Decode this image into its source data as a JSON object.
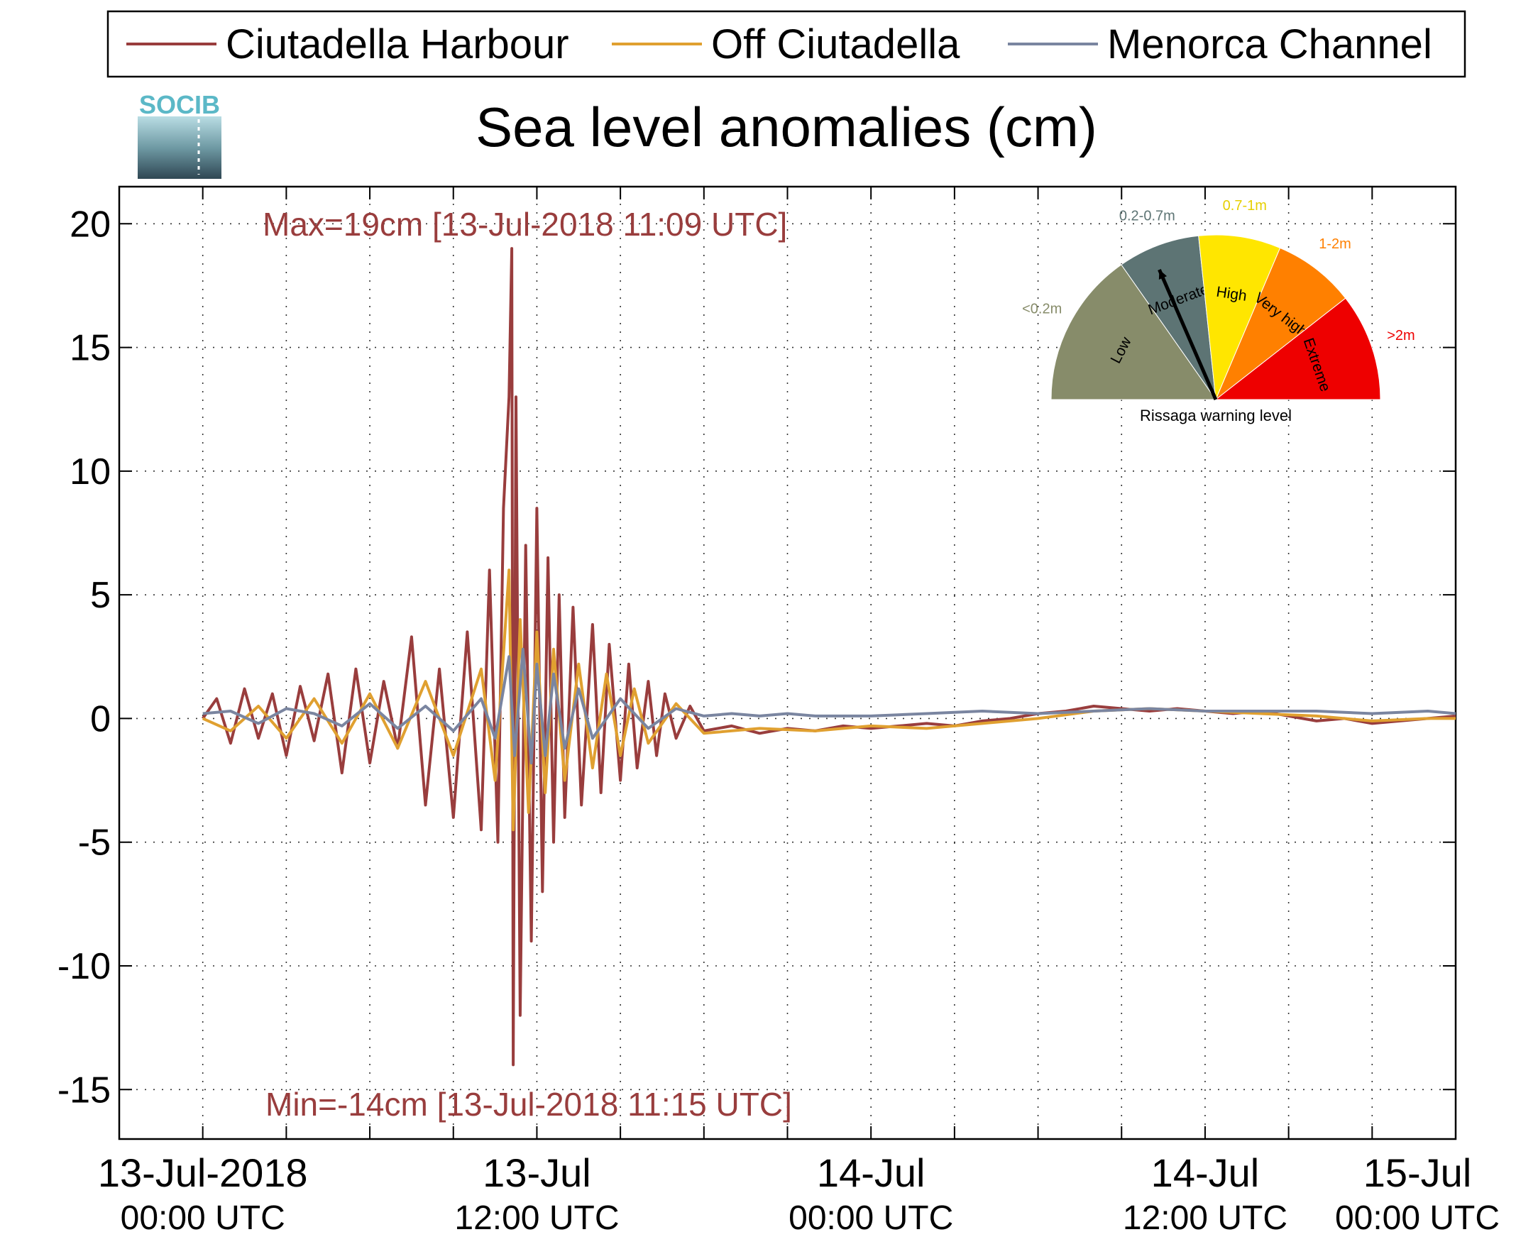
{
  "title": "Sea level anomalies (cm)",
  "logo": {
    "text": "SOCIB"
  },
  "legend": [
    {
      "label": "Ciutadella Harbour",
      "color": "#993d3d"
    },
    {
      "label": "Off Ciutadella",
      "color": "#e0a030"
    },
    {
      "label": "Menorca Channel",
      "color": "#7a85a0"
    }
  ],
  "annotations": {
    "max": "Max=19cm [13-Jul-2018 11:09 UTC]",
    "min": "Min=-14cm [13-Jul-2018 11:15 UTC]",
    "color": "#993d3d"
  },
  "gauge": {
    "title": "Rissaga warning level",
    "needle_level": "Moderate",
    "segments": [
      {
        "name": "Low",
        "range": "<0.2m",
        "color": "#878c6a",
        "range_color": "#878c6a"
      },
      {
        "name": "Moderate",
        "range": "0.2-0.7m",
        "color": "#5d7474",
        "range_color": "#5d7474"
      },
      {
        "name": "High",
        "range": "0.7-1m",
        "color": "#ffe600",
        "range_color": "#e6cf00"
      },
      {
        "name": "Very high",
        "range": "1-2m",
        "color": "#ff8000",
        "range_color": "#ff8000"
      },
      {
        "name": "Extreme",
        "range": ">2m",
        "color": "#ee0000",
        "range_color": "#ee0000"
      }
    ]
  },
  "chart_data": {
    "type": "line",
    "title": "Sea level anomalies (cm)",
    "ylabel": "",
    "xlabel": "",
    "ylim": [
      -17,
      21.5
    ],
    "yticks": [
      -15,
      -10,
      -5,
      0,
      5,
      10,
      15,
      20
    ],
    "ytick_labels": [
      "-15",
      "-10",
      "-5",
      "0",
      "5",
      "10",
      "15",
      "20"
    ],
    "xlim_hours": [
      -3,
      45
    ],
    "xticks": [
      {
        "hour": 0,
        "label1": "13-Jul-2018",
        "label2": "00:00 UTC"
      },
      {
        "hour": 12,
        "label1": "13-Jul",
        "label2": "12:00 UTC"
      },
      {
        "hour": 24,
        "label1": "14-Jul",
        "label2": "00:00 UTC"
      },
      {
        "hour": 36,
        "label1": "14-Jul",
        "label2": "12:00 UTC"
      },
      {
        "hour": 48,
        "label1": "15-Jul",
        "label2": "00:00 UTC"
      }
    ],
    "minor_xticks": [
      0,
      3,
      6,
      9,
      12,
      15,
      18,
      21,
      24,
      27,
      30,
      33,
      36,
      39,
      42,
      45
    ],
    "grid": true,
    "legend_position": "top",
    "series": [
      {
        "name": "Ciutadella Harbour",
        "color": "#993d3d",
        "x": [
          0,
          0.5,
          1,
          1.5,
          2,
          2.5,
          3,
          3.5,
          4,
          4.5,
          5,
          5.5,
          6,
          6.5,
          7,
          7.5,
          8,
          8.5,
          9,
          9.5,
          10,
          10.3,
          10.6,
          10.8,
          11.0,
          11.1,
          11.15,
          11.25,
          11.4,
          11.6,
          11.8,
          12.0,
          12.2,
          12.4,
          12.6,
          12.8,
          13,
          13.3,
          13.6,
          14,
          14.3,
          14.6,
          15,
          15.3,
          15.6,
          16,
          16.3,
          16.6,
          17,
          17.5,
          18,
          19,
          20,
          21,
          22,
          23,
          24,
          25,
          26,
          27,
          28,
          29,
          30,
          31,
          32,
          33,
          34,
          35,
          36,
          37,
          38,
          39,
          40,
          41,
          42,
          43,
          44,
          45
        ],
        "y": [
          0,
          0.8,
          -1,
          1.2,
          -0.8,
          1,
          -1.5,
          1.3,
          -0.9,
          1.8,
          -2.2,
          2,
          -1.8,
          1.5,
          -1.2,
          3.3,
          -3.5,
          2,
          -4,
          3.5,
          -4.5,
          6,
          -5,
          8.5,
          13,
          19,
          -14,
          13,
          -12,
          7,
          -9,
          8.5,
          -7,
          6.5,
          -5,
          5,
          -4,
          4.5,
          -3.5,
          3.8,
          -3,
          3,
          -2.5,
          2.2,
          -2,
          1.5,
          -1.5,
          1,
          -0.8,
          0.5,
          -0.5,
          -0.3,
          -0.6,
          -0.4,
          -0.5,
          -0.3,
          -0.4,
          -0.3,
          -0.2,
          -0.3,
          -0.1,
          0,
          0.2,
          0.3,
          0.5,
          0.4,
          0.3,
          0.4,
          0.3,
          0.2,
          0.3,
          0.1,
          -0.1,
          0,
          -0.2,
          -0.1,
          0,
          0.1
        ]
      },
      {
        "name": "Off Ciutadella",
        "color": "#e0a030",
        "x": [
          0,
          1,
          2,
          3,
          4,
          5,
          6,
          7,
          8,
          9,
          10,
          10.5,
          11,
          11.15,
          11.4,
          11.7,
          12,
          12.3,
          12.6,
          13,
          13.5,
          14,
          14.5,
          15,
          15.5,
          16,
          17,
          18,
          20,
          22,
          24,
          26,
          28,
          30,
          32,
          34,
          36,
          38,
          40,
          42,
          44,
          45
        ],
        "y": [
          0,
          -0.5,
          0.5,
          -0.8,
          0.8,
          -1,
          1,
          -1.2,
          1.5,
          -1.5,
          2,
          -2.5,
          6,
          -4.5,
          4,
          -3.8,
          3.5,
          -3,
          2.8,
          -2.5,
          2.2,
          -2,
          1.8,
          -1.5,
          1.2,
          -1,
          0.6,
          -0.6,
          -0.4,
          -0.5,
          -0.3,
          -0.4,
          -0.2,
          0,
          0.3,
          0.4,
          0.3,
          0.2,
          0.1,
          -0.1,
          0,
          0
        ]
      },
      {
        "name": "Menorca Channel",
        "color": "#7a85a0",
        "x": [
          0,
          1,
          2,
          3,
          4,
          5,
          6,
          7,
          8,
          9,
          10,
          10.5,
          11,
          11.2,
          11.5,
          11.8,
          12,
          12.3,
          12.6,
          13,
          13.5,
          14,
          15,
          16,
          17,
          18,
          19,
          20,
          21,
          22,
          24,
          26,
          28,
          30,
          32,
          34,
          36,
          38,
          40,
          42,
          44,
          45
        ],
        "y": [
          0.2,
          0.3,
          -0.2,
          0.4,
          0.2,
          -0.3,
          0.6,
          -0.4,
          0.5,
          -0.5,
          0.8,
          -0.8,
          2.5,
          -1.5,
          2.8,
          -1.8,
          2.2,
          -1.5,
          1.8,
          -1.2,
          1.2,
          -0.8,
          0.8,
          -0.4,
          0.4,
          0.1,
          0.2,
          0.1,
          0.2,
          0.1,
          0.1,
          0.2,
          0.3,
          0.2,
          0.3,
          0.4,
          0.3,
          0.3,
          0.3,
          0.2,
          0.3,
          0.2
        ]
      }
    ]
  }
}
